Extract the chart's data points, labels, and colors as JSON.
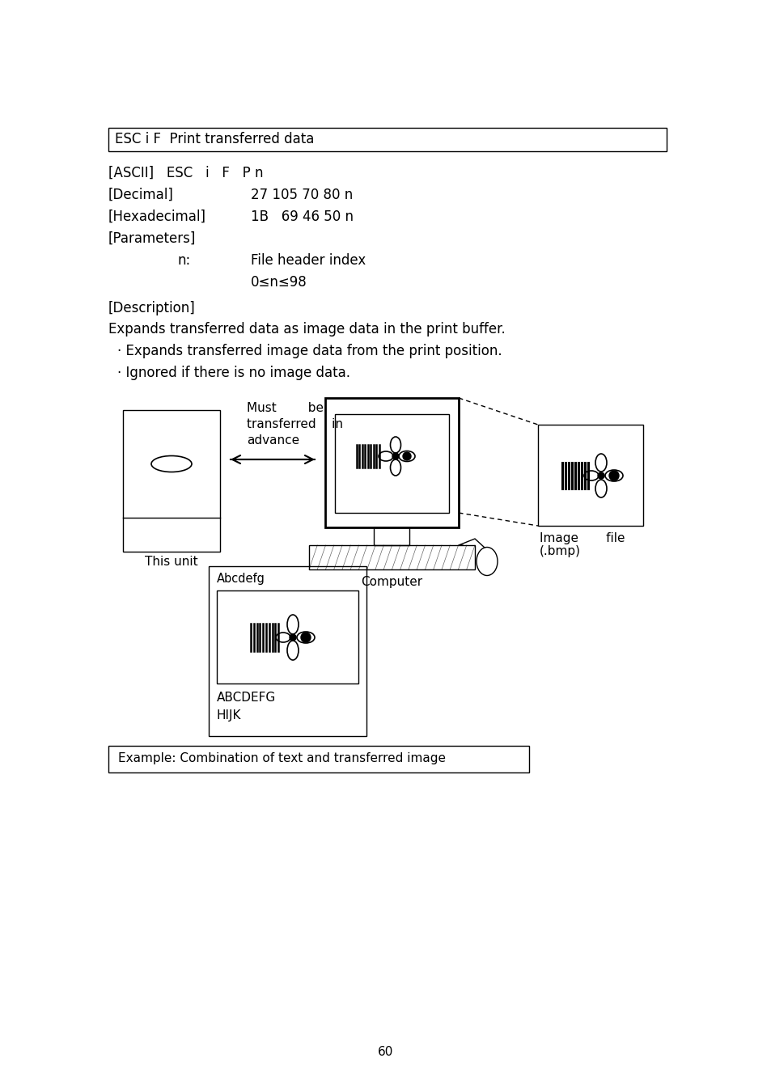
{
  "title_box_text": "ESC i F  Print transferred data",
  "ascii_line": "[ASCII]   ESC   i   F   P n",
  "decimal_line1": "[Decimal]",
  "decimal_line2": "27 105 70 80 n",
  "hex_line1": "[Hexadecimal]",
  "hex_line2": "1B   69 46 50 n",
  "params_label": "[Parameters]",
  "param_n_label": "n:",
  "param_n_desc1": "File header index",
  "param_n_desc2": "0≤n≤98",
  "desc_label": "[Description]",
  "desc_text": "Expands transferred data as image data in the print buffer.",
  "bullet1": "· Expands transferred image data from the print position.",
  "bullet2": "· Ignored if there is no image data.",
  "this_unit_label": "This unit",
  "computer_label": "Computer",
  "image_line1": "Image       file",
  "image_line2": "(.bmp)",
  "must_line1": "Must        be",
  "must_line2": "transferred    in",
  "must_line3": "advance",
  "abcdefg_label": "Abcdefg",
  "abcdefg_text": "ABCDEFG",
  "hijk_text": "HIJK",
  "example_box_text": "Example: Combination of text and transferred image",
  "page_number": "60",
  "bg_color": "#ffffff"
}
